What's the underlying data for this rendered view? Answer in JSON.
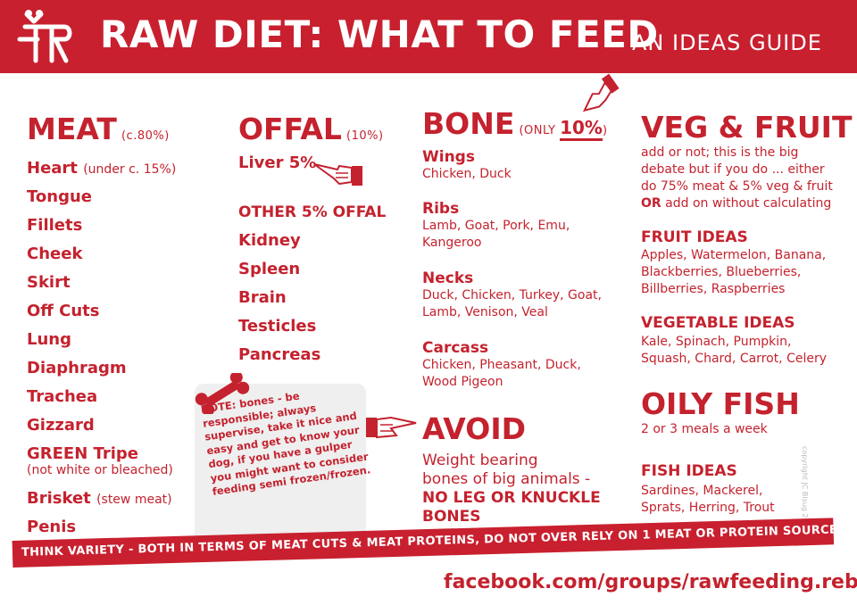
{
  "header": {
    "title": "RAW DIET: WHAT TO FEED",
    "subtitle": "AN IDEAS GUIDE"
  },
  "colors": {
    "brand": "#c8202f",
    "text": "#c4222e",
    "note_bg": "#efefef"
  },
  "meat": {
    "title": "MEAT",
    "note": "(c.80%)",
    "items": [
      {
        "label": "Heart",
        "note": "(under c. 15%)"
      },
      {
        "label": "Tongue"
      },
      {
        "label": "Fillets"
      },
      {
        "label": "Cheek"
      },
      {
        "label": "Skirt"
      },
      {
        "label": "Off Cuts"
      },
      {
        "label": "Lung"
      },
      {
        "label": "Diaphragm"
      },
      {
        "label": "Trachea"
      },
      {
        "label": "Gizzard"
      },
      {
        "label": "GREEN Tripe"
      },
      {
        "label": "Brisket",
        "note": "(stew meat)"
      },
      {
        "label": "Penis"
      }
    ],
    "tripe_note": "(not white or bleached)"
  },
  "offal": {
    "title": "OFFAL",
    "note": "(10%)",
    "liver": "Liver 5%",
    "other_title": "OTHER 5% OFFAL",
    "items": [
      "Kidney",
      "Spleen",
      "Brain",
      "Testicles",
      "Pancreas"
    ]
  },
  "note_card": {
    "text": "NOTE: bones - be responsible; always supervise, take it nice and easy and get to know your dog, if you have a gulper you might want to consider feeding semi frozen/frozen."
  },
  "bone": {
    "title": "BONE",
    "note_prefix": "(ONLY ",
    "note_value": "10%",
    "note_suffix": ")",
    "groups": [
      {
        "name": "Wings",
        "items": "Chicken, Duck"
      },
      {
        "name": "Ribs",
        "items": "Lamb, Goat, Pork, Emu, Kangeroo"
      },
      {
        "name": "Necks",
        "items": "Duck, Chicken, Turkey, Goat, Lamb, Venison, Veal"
      },
      {
        "name": "Carcass",
        "items": "Chicken, Pheasant, Duck, Wood Pigeon"
      }
    ]
  },
  "avoid": {
    "title": "AVOID",
    "line1": "Weight bearing",
    "line2": "bones of big animals -",
    "bold": "NO LEG OR KNUCKLE BONES"
  },
  "veg": {
    "title": "VEG & FRUIT",
    "desc1": "add or not; this is the big debate but if you do ... either do 75% meat & 5% veg & fruit",
    "or": "OR",
    "desc2": " add on without calculating",
    "fruit_title": "FRUIT IDEAS",
    "fruit_items": "Apples, Watermelon, Banana, Blackberries, Blueberries, Billberries, Raspberries",
    "veg_title": "VEGETABLE IDEAS",
    "veg_items": "Kale, Spinach, Pumpkin, Squash, Chard, Carrot, Celery"
  },
  "fish": {
    "title": "OILY FISH",
    "desc": "2 or 3 meals a week",
    "ideas_title": "FISH IDEAS",
    "ideas_items": "Sardines, Mackerel, Sprats, Herring, Trout"
  },
  "copyright": "copyright JC Bisug 2016",
  "banner": "THINK VARIETY - BOTH IN TERMS OF MEAT CUTS & MEAT PROTEINS, DO NOT OVER RELY ON 1 MEAT OR PROTEIN SOURCE LONG TERM",
  "footer": "facebook.com/groups/rawfeeding.rebels"
}
